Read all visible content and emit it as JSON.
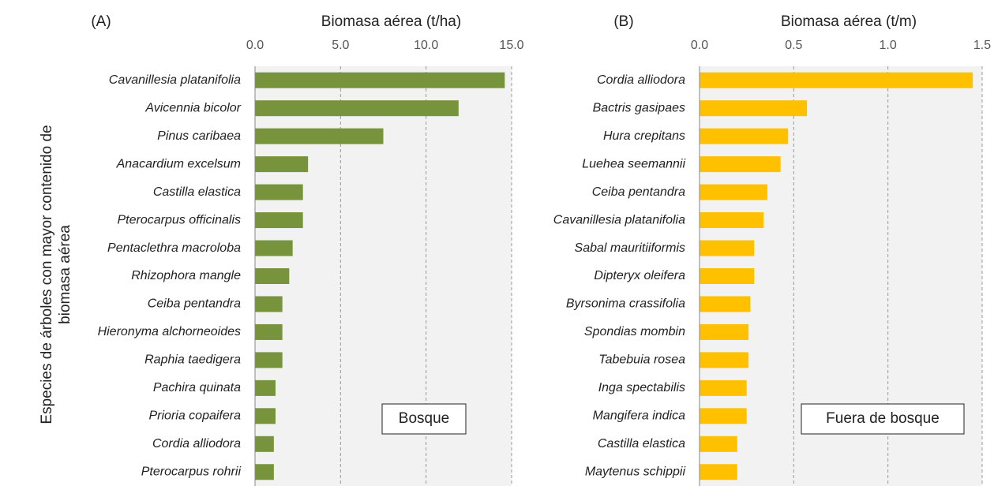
{
  "chart_data": [
    {
      "type": "bar",
      "panel_label": "(A)",
      "title": "Biomasa aérea (t/ha)",
      "ylabel": [
        "Especies de árboles con mayor contenido de",
        "biomasa aérea"
      ],
      "annotation": "Bosque",
      "color": "#77933c",
      "grid": true,
      "xlim": [
        0,
        15
      ],
      "xticks": [
        {
          "value": 0,
          "label": "0.0"
        },
        {
          "value": 5,
          "label": "5.0"
        },
        {
          "value": 10,
          "label": "10.0"
        },
        {
          "value": 15,
          "label": "15.0"
        }
      ],
      "categories": [
        "Cavanillesia platanifolia",
        "Avicennia bicolor",
        "Pinus caribaea",
        "Anacardium excelsum",
        "Castilla elastica",
        "Pterocarpus officinalis",
        "Pentaclethra macroloba",
        "Rhizophora mangle",
        "Ceiba pentandra",
        "Hieronyma alchorneoides",
        "Raphia taedigera",
        "Pachira quinata",
        "Prioria copaifera",
        "Cordia alliodora",
        "Pterocarpus rohrii"
      ],
      "values": [
        14.6,
        11.9,
        7.5,
        3.1,
        2.8,
        2.8,
        2.2,
        2.0,
        1.6,
        1.6,
        1.6,
        1.2,
        1.2,
        1.1,
        1.1
      ]
    },
    {
      "type": "bar",
      "panel_label": "(B)",
      "title": "Biomasa aérea (t/m)",
      "annotation": "Fuera de bosque",
      "color": "#ffc000",
      "grid": true,
      "xlim": [
        0,
        1.5
      ],
      "xticks": [
        {
          "value": 0,
          "label": "0.0"
        },
        0.5,
        {
          "value": 1,
          "label": "1.0"
        },
        1.5
      ],
      "categories": [
        "Cordia alliodora",
        "Bactris gasipaes",
        "Hura crepitans",
        "Luehea seemannii",
        "Ceiba pentandra",
        "Cavanillesia platanifolia",
        "Sabal mauritiiformis",
        "Dipteryx oleifera",
        "Byrsonima crassifolia",
        "Spondias mombin",
        "Tabebuia rosea",
        "Inga spectabilis",
        "Mangifera indica",
        "Castilla elastica",
        "Maytenus schippii"
      ],
      "values": [
        1.45,
        0.57,
        0.47,
        0.43,
        0.36,
        0.34,
        0.29,
        0.29,
        0.27,
        0.26,
        0.26,
        0.25,
        0.25,
        0.2,
        0.2
      ]
    }
  ]
}
